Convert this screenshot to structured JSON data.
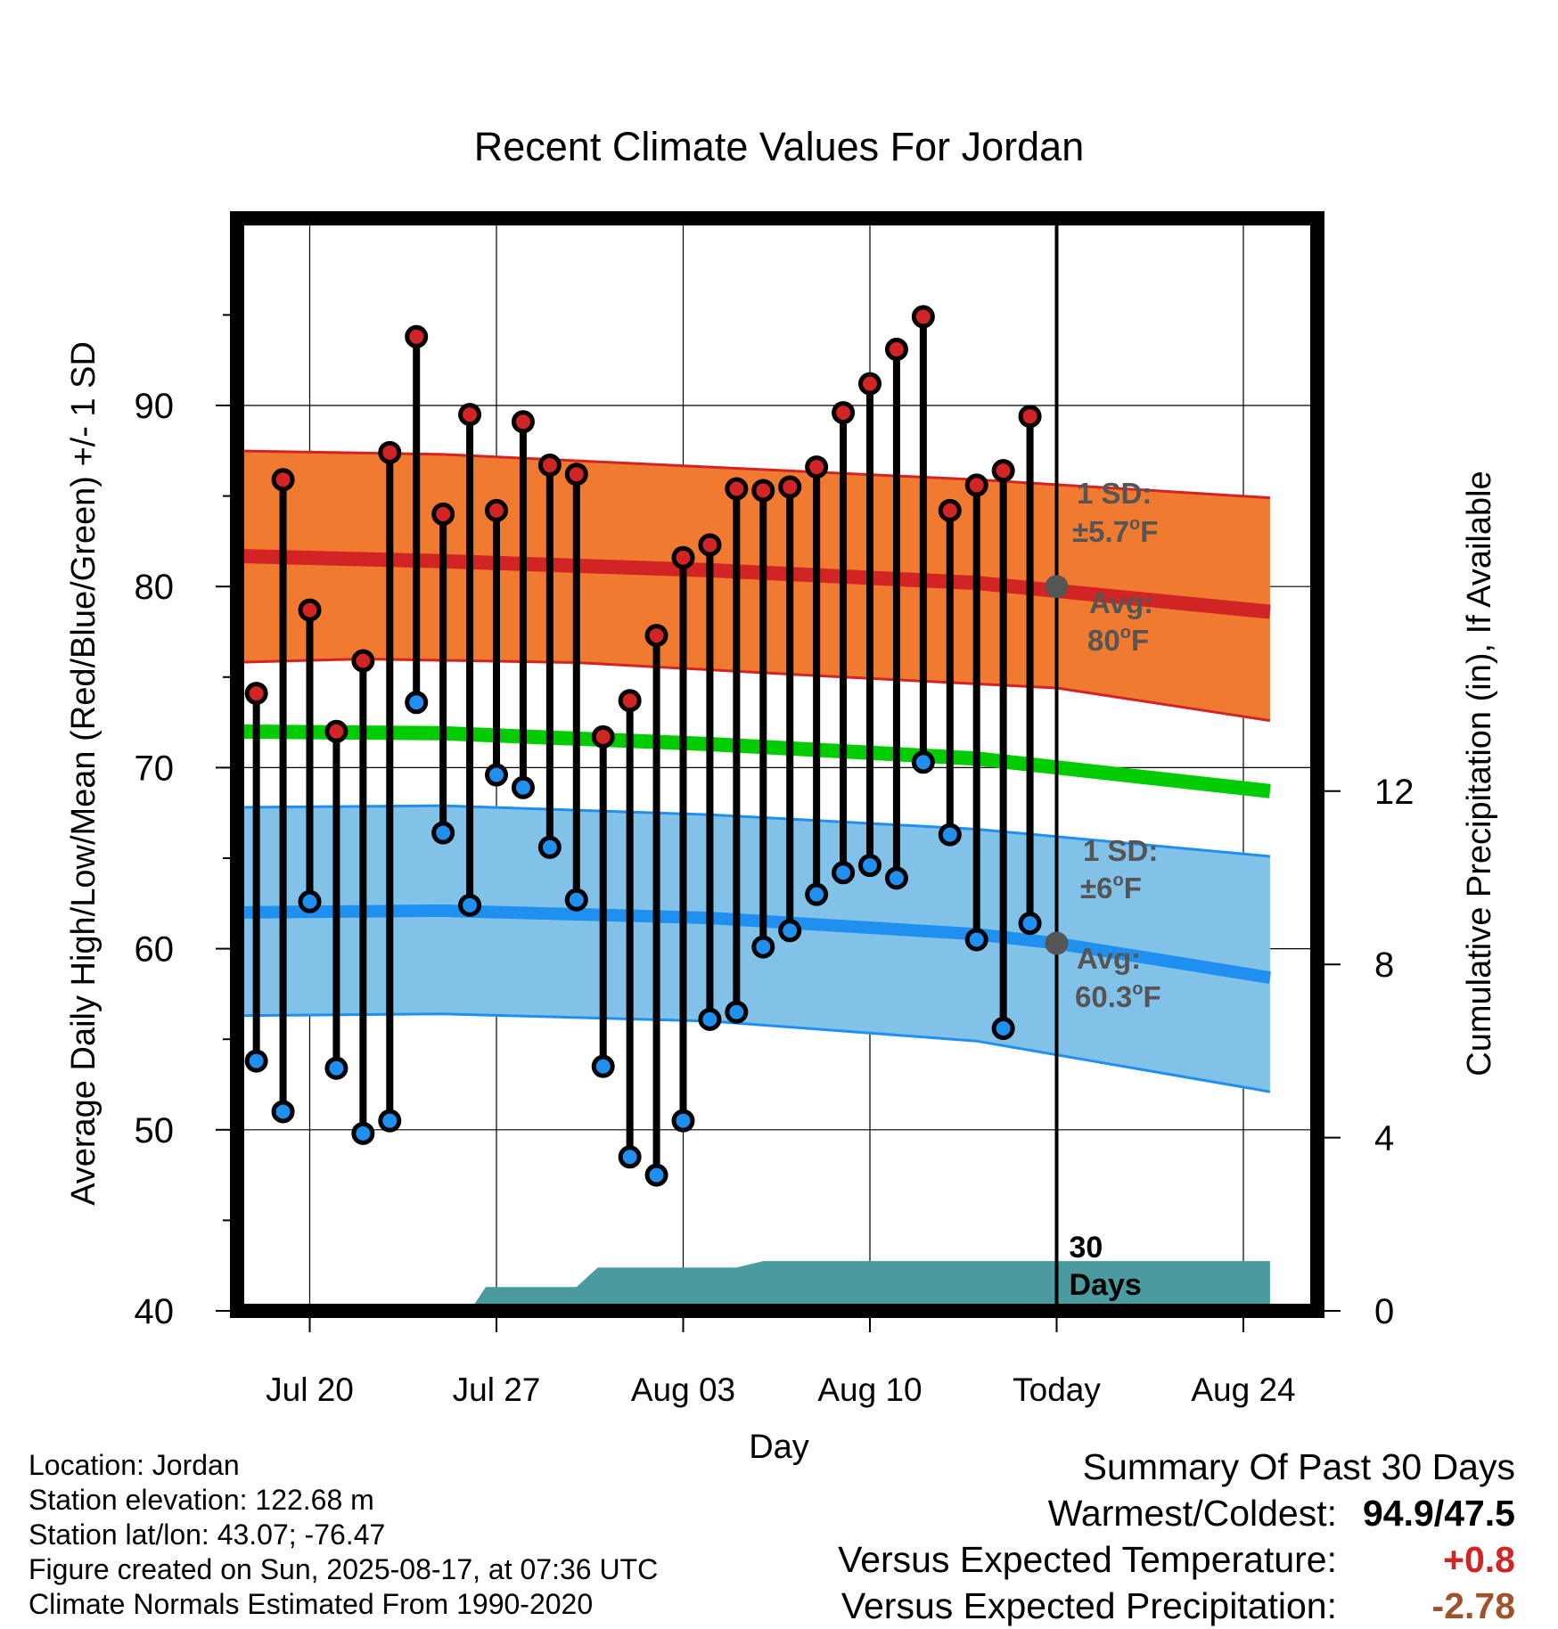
{
  "chart_data": {
    "type": "line",
    "title": "Recent Climate Values For Jordan",
    "xlabel": "Day",
    "ylabel_left": "Average Daily High/Low/Mean (Red/Blue/Green) +/- 1 SD",
    "ylabel_right": "Cumulative Precipitation (in), If Available",
    "ylim": [
      40,
      100
    ],
    "ylim_right": [
      0,
      20.5
    ],
    "y_ticks": [
      "40",
      "50",
      "60",
      "70",
      "80",
      "90"
    ],
    "y_right_ticks": [
      "0",
      "4",
      "8",
      "12"
    ],
    "x_range_days": [
      17,
      56
    ],
    "x_ticks": [
      {
        "day": 20,
        "label": "Jul 20"
      },
      {
        "day": 27,
        "label": "Jul 27"
      },
      {
        "day": 34,
        "label": "Aug 03"
      },
      {
        "day": 41,
        "label": "Aug 10"
      },
      {
        "day": 48,
        "label": "Today"
      },
      {
        "day": 55,
        "label": "Aug 24"
      }
    ],
    "today_day": 48,
    "today_label": [
      "30",
      "Days"
    ],
    "days": [
      18,
      19,
      20,
      21,
      22,
      23,
      24,
      25,
      26,
      27,
      28,
      29,
      30,
      31,
      32,
      33,
      34,
      35,
      36,
      37,
      38,
      39,
      40,
      41,
      42,
      43,
      44,
      45,
      46,
      47
    ],
    "highs": [
      74.1,
      85.9,
      78.7,
      72.0,
      75.9,
      87.4,
      93.8,
      84.0,
      89.5,
      84.2,
      89.1,
      86.7,
      86.2,
      71.7,
      73.7,
      77.3,
      81.6,
      82.3,
      85.4,
      85.3,
      85.5,
      86.6,
      89.6,
      91.2,
      93.1,
      94.9,
      84.2,
      85.6,
      86.4,
      89.4
    ],
    "lows": [
      53.8,
      51.0,
      62.6,
      53.4,
      49.8,
      50.5,
      73.6,
      66.4,
      62.4,
      69.6,
      68.9,
      65.6,
      62.7,
      53.5,
      48.5,
      47.5,
      50.5,
      56.1,
      56.5,
      60.1,
      61.0,
      63.0,
      64.2,
      64.6,
      63.9,
      70.3,
      66.3,
      60.5,
      55.6,
      61.4
    ],
    "normal_high_mean": [
      [
        17,
        81.7
      ],
      [
        25,
        81.4
      ],
      [
        35,
        80.9
      ],
      [
        45,
        80.2
      ],
      [
        56,
        78.6
      ]
    ],
    "normal_high_upper": [
      [
        17,
        87.5
      ],
      [
        25,
        87.3
      ],
      [
        35,
        86.6
      ],
      [
        45,
        85.9
      ],
      [
        56,
        84.9
      ]
    ],
    "normal_high_lower": [
      [
        17,
        75.8
      ],
      [
        22,
        76.0
      ],
      [
        30,
        75.8
      ],
      [
        40,
        75.0
      ],
      [
        48,
        74.4
      ],
      [
        56,
        72.6
      ]
    ],
    "normal_mean": [
      [
        17,
        72.0
      ],
      [
        25,
        71.9
      ],
      [
        35,
        71.3
      ],
      [
        45,
        70.5
      ],
      [
        56,
        68.7
      ]
    ],
    "normal_low_mean": [
      [
        17,
        62.0
      ],
      [
        25,
        62.1
      ],
      [
        35,
        61.7
      ],
      [
        45,
        60.8
      ],
      [
        48,
        60.3
      ],
      [
        56,
        58.4
      ]
    ],
    "normal_low_upper": [
      [
        17,
        67.8
      ],
      [
        25,
        67.9
      ],
      [
        35,
        67.4
      ],
      [
        45,
        66.6
      ],
      [
        56,
        65.1
      ]
    ],
    "normal_low_lower": [
      [
        17,
        56.3
      ],
      [
        25,
        56.4
      ],
      [
        35,
        56.0
      ],
      [
        45,
        54.9
      ],
      [
        56,
        52.1
      ]
    ],
    "precip_cumulative": [
      [
        17,
        0
      ],
      [
        26,
        0
      ],
      [
        26.6,
        0.55
      ],
      [
        29,
        0.55
      ],
      [
        30,
        0.55
      ],
      [
        30.8,
        1.0
      ],
      [
        35,
        1.0
      ],
      [
        36,
        1.0
      ],
      [
        37,
        1.15
      ],
      [
        56,
        1.15
      ]
    ],
    "annotations": {
      "high_sd_line1": "1 SD:",
      "high_sd_line2": "±5.7",
      "high_avg_line1": "Avg:",
      "high_avg_line2": "80",
      "low_sd_line1": "1 SD:",
      "low_sd_line2": "±6",
      "low_avg_line1": "Avg:",
      "low_avg_line2": "60.3",
      "deg": "o",
      "unit": "F"
    },
    "colors": {
      "high_band": "#f07b30",
      "high_line": "#d22424",
      "mean_line": "#00cc00",
      "low_band": "#82c1e8",
      "low_line": "#1f8ff0",
      "precip": "#4a9ba0",
      "high_dot": "#d22424",
      "low_dot": "#1f8ff0",
      "annotation": "#555555",
      "avg_marker": "#555555"
    }
  },
  "info": {
    "location": "Location: Jordan",
    "elevation": "Station elevation: 122.68 m",
    "latlon": "Station lat/lon: 43.07; -76.47",
    "created": "Figure created on Sun, 2025-08-17, at 07:36 UTC",
    "normals": "Climate Normals Estimated From 1990-2020"
  },
  "summary": {
    "title": "Summary Of Past 30 Days",
    "warm_cold_label": "Warmest/Coldest:",
    "warm_cold_value": "94.9/47.5",
    "temp_label": "Versus Expected Temperature:",
    "temp_value": "+0.8",
    "temp_color": "#d22424",
    "precip_label": "Versus Expected Precipitation:",
    "precip_value": "-2.78",
    "precip_color": "#a0522d"
  }
}
